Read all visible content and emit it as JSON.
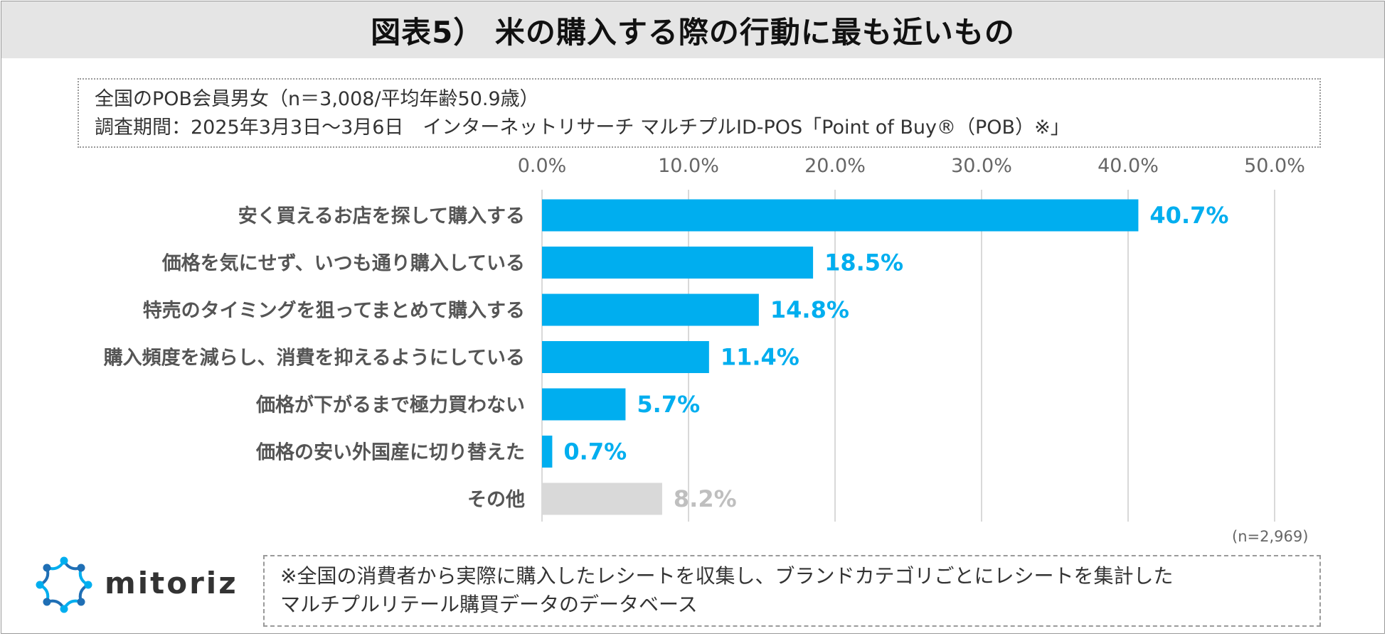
{
  "header": {
    "title": "図表5） 米の購入する際の行動に最も近いもの"
  },
  "info": {
    "line1": "全国のPOB会員男女（n＝3,008/平均年齢50.9歳）",
    "line2": "調査期間：2025年3月3日～3月6日　インターネットリサーチ マルチプルID-POS「Point of Buy®（POB）※」"
  },
  "chart_data": {
    "type": "bar",
    "orientation": "horizontal",
    "categories": [
      "安く買えるお店を探して購入する",
      "価格を気にせず、いつも通り購入している",
      "特売のタイミングを狙ってまとめて購入する",
      "購入頻度を減らし、消費を抑えるようにしている",
      "価格が下がるまで極力買わない",
      "価格の安い外国産に切り替えた",
      "その他"
    ],
    "values": [
      40.7,
      18.5,
      14.8,
      11.4,
      5.7,
      0.7,
      8.2
    ],
    "value_labels": [
      "40.7%",
      "18.5%",
      "14.8%",
      "11.4%",
      "5.7%",
      "0.7%",
      "8.2%"
    ],
    "xlim": [
      0,
      50
    ],
    "xticks": [
      "0.0%",
      "10.0%",
      "20.0%",
      "30.0%",
      "40.0%",
      "50.0%"
    ],
    "x_axis_position": "top",
    "grid": true,
    "colors": {
      "primary": "#00aeef",
      "other": "#d9d9d9",
      "other_label": "#bfbfbf",
      "grid": "#d9d9d9"
    }
  },
  "sample_note": "(n=2,969)",
  "logo": {
    "text": "mitoriz",
    "icon": "mitoriz-logo-icon",
    "colors": [
      "#1f6fb5",
      "#00aeef"
    ]
  },
  "footnote": {
    "line1": "※全国の消費者から実際に購入したレシートを収集し、ブランドカテゴリごとにレシートを集計した",
    "line2": "マルチプルリテール購買データのデータベース"
  }
}
